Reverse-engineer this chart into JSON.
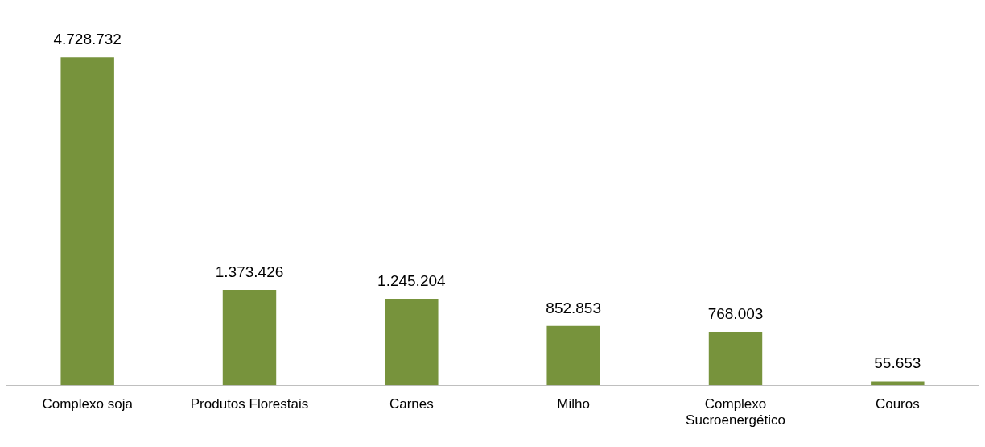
{
  "chart_data": {
    "type": "bar",
    "categories": [
      "Complexo soja",
      "Produtos Florestais",
      "Carnes",
      "Milho",
      "Complexo Sucroenergético",
      "Couros"
    ],
    "values": [
      4728732,
      1373426,
      1245204,
      852853,
      768003,
      55653
    ],
    "value_labels": [
      "4.728.732",
      "1.373.426",
      "1.245.204",
      "852.853",
      "768.003",
      "55.653"
    ],
    "color": "#77933c",
    "grid": false,
    "legend": false
  }
}
